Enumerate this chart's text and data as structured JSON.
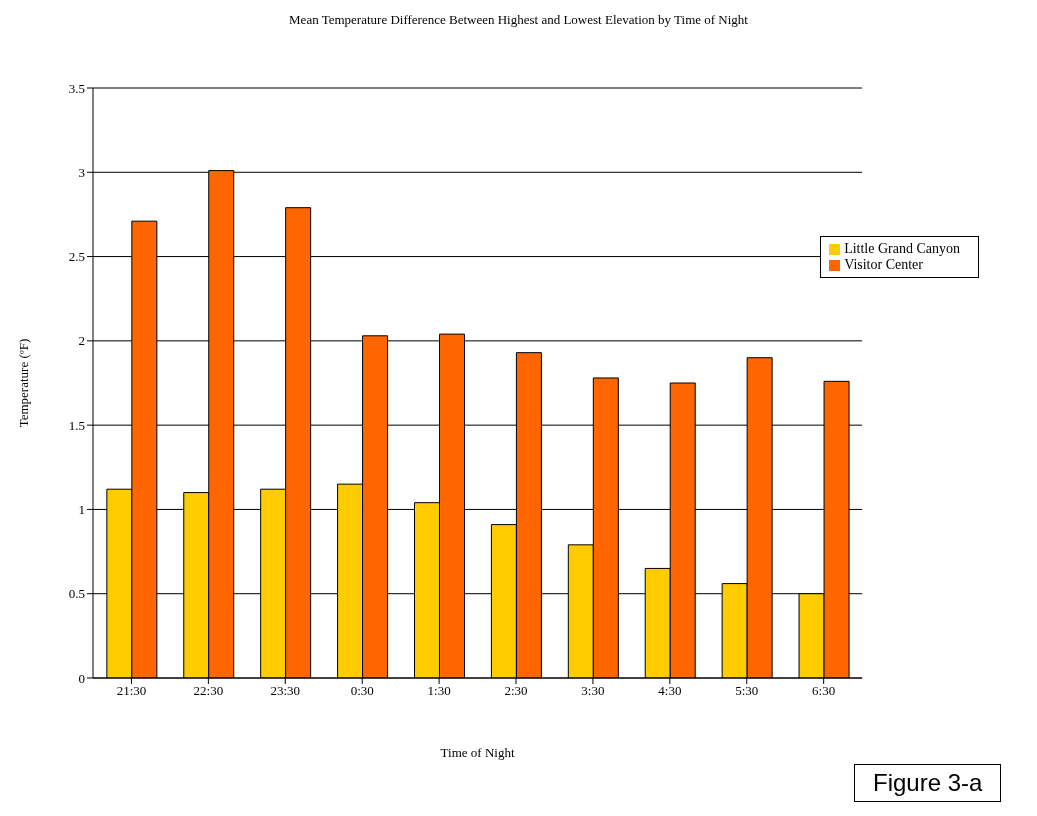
{
  "chart_data": {
    "type": "bar",
    "title": "Mean Temperature Difference Between Highest and Lowest Elevation by Time of Night",
    "xlabel": "Time of Night",
    "ylabel": "Temperature (ºF)",
    "categories": [
      "21:30",
      "22:30",
      "23:30",
      "0:30",
      "1:30",
      "2:30",
      "3:30",
      "4:30",
      "5:30",
      "6:30"
    ],
    "series": [
      {
        "name": "Little Grand Canyon",
        "color": "#ffcc00",
        "values": [
          1.12,
          1.1,
          1.12,
          1.15,
          1.04,
          0.91,
          0.79,
          0.65,
          0.56,
          0.5
        ]
      },
      {
        "name": "Visitor Center",
        "color": "#ff6600",
        "values": [
          2.71,
          3.01,
          2.79,
          2.03,
          2.04,
          1.93,
          1.78,
          1.75,
          1.9,
          1.76
        ]
      }
    ],
    "ylim": [
      0,
      3.5
    ],
    "yticks": [
      0,
      0.5,
      1,
      1.5,
      2,
      2.5,
      3,
      3.5
    ],
    "grid": "y",
    "legend": "top right",
    "annotations": [
      "Figure 3-a"
    ]
  }
}
